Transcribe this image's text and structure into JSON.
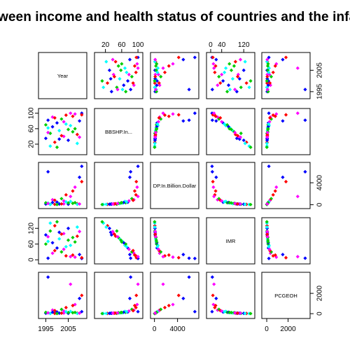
{
  "chart_data": {
    "type": "scatter",
    "title": "ween income and health status of countries and the infa",
    "variables": [
      "Year",
      "BBSHP.In...",
      "DP.In.Billion.Dollar",
      "IMR",
      "PCGEOH"
    ],
    "ranges": {
      "Year": [
        1993,
        2012
      ],
      "BBSHP": [
        0,
        105
      ],
      "GDP": [
        -200,
        7200
      ],
      "IMR": [
        -5,
        150
      ],
      "PCGEOH": [
        -200,
        3800
      ]
    },
    "ticks": {
      "top": {
        "col1": {
          "var": "BBSHP",
          "values": [
            20,
            60,
            100
          ],
          "labels": [
            "20",
            "60",
            "100"
          ]
        },
        "col3": {
          "var": "IMR",
          "values": [
            0,
            40,
            120
          ],
          "labels": [
            "0",
            "40",
            "120"
          ]
        }
      },
      "bottom": {
        "col0": {
          "var": "Year",
          "values": [
            1995,
            2005
          ],
          "labels": [
            "1995",
            "2005"
          ]
        },
        "col2": {
          "var": "GDP",
          "values": [
            0,
            4000
          ],
          "labels": [
            "0",
            "4000"
          ]
        },
        "col4": {
          "var": "PCGEOH",
          "values": [
            0,
            2000
          ],
          "labels": [
            "0",
            "2000"
          ]
        }
      },
      "left": {
        "row1": {
          "var": "BBSHP",
          "values": [
            20,
            60,
            100
          ],
          "labels": [
            "20",
            "60",
            "100"
          ]
        },
        "row3": {
          "var": "IMR",
          "values": [
            0,
            60,
            120
          ],
          "labels": [
            "0",
            "60",
            "120"
          ]
        }
      },
      "right": {
        "row0": {
          "var": "Year",
          "values": [
            1995,
            2005
          ],
          "labels": [
            "1995",
            "2005"
          ]
        },
        "row2": {
          "var": "GDP",
          "values": [
            0,
            4000
          ],
          "labels": [
            "0",
            "4000"
          ]
        },
        "row4": {
          "var": "PCGEOH",
          "values": [
            0,
            2000
          ],
          "labels": [
            "0",
            "2000"
          ]
        }
      }
    },
    "palette": [
      "#0000FF",
      "#00FFFF",
      "#00CD00",
      "#FF00FF",
      "#FF0000"
    ],
    "points": [
      {
        "Year": 1995,
        "BBSHP": 35,
        "GDP": 120,
        "IMR": 95,
        "PCGEOH": 40,
        "c": 0
      },
      {
        "Year": 1996,
        "BBSHP": 62,
        "GDP": 300,
        "IMR": 70,
        "PCGEOH": 90,
        "c": 1
      },
      {
        "Year": 1997,
        "BBSHP": 48,
        "GDP": 80,
        "IMR": 110,
        "PCGEOH": 30,
        "c": 2
      },
      {
        "Year": 1998,
        "BBSHP": 90,
        "GDP": 900,
        "IMR": 25,
        "PCGEOH": 350,
        "c": 3
      },
      {
        "Year": 1999,
        "BBSHP": 25,
        "GDP": 60,
        "IMR": 130,
        "PCGEOH": 25,
        "c": 4
      },
      {
        "Year": 2000,
        "BBSHP": 75,
        "GDP": 450,
        "IMR": 45,
        "PCGEOH": 160,
        "c": 0
      },
      {
        "Year": 2001,
        "BBSHP": 55,
        "GDP": 200,
        "IMR": 80,
        "PCGEOH": 70,
        "c": 1
      },
      {
        "Year": 2002,
        "BBSHP": 85,
        "GDP": 1100,
        "IMR": 30,
        "PCGEOH": 420,
        "c": 2
      },
      {
        "Year": 2003,
        "BBSHP": 40,
        "GDP": 150,
        "IMR": 100,
        "PCGEOH": 55,
        "c": 3
      },
      {
        "Year": 2004,
        "BBSHP": 95,
        "GDP": 1800,
        "IMR": 15,
        "PCGEOH": 600,
        "c": 4
      },
      {
        "Year": 2005,
        "BBSHP": 30,
        "GDP": 90,
        "IMR": 120,
        "PCGEOH": 35,
        "c": 0
      },
      {
        "Year": 2006,
        "BBSHP": 68,
        "GDP": 600,
        "IMR": 55,
        "PCGEOH": 220,
        "c": 1
      },
      {
        "Year": 2007,
        "BBSHP": 52,
        "GDP": 250,
        "IMR": 85,
        "PCGEOH": 95,
        "c": 2
      },
      {
        "Year": 2008,
        "BBSHP": 98,
        "GDP": 3200,
        "IMR": 10,
        "PCGEOH": 900,
        "c": 3
      },
      {
        "Year": 2009,
        "BBSHP": 45,
        "GDP": 180,
        "IMR": 90,
        "PCGEOH": 60,
        "c": 4
      },
      {
        "Year": 2010,
        "BBSHP": 80,
        "GDP": 5000,
        "IMR": 20,
        "PCGEOH": 1500,
        "c": 0
      },
      {
        "Year": 2011,
        "BBSHP": 100,
        "GDP": 7000,
        "IMR": 5,
        "PCGEOH": 200,
        "c": 0
      },
      {
        "Year": 1995,
        "BBSHP": 70,
        "GDP": 350,
        "IMR": 60,
        "PCGEOH": 130,
        "c": 2
      },
      {
        "Year": 1997,
        "BBSHP": 15,
        "GDP": 40,
        "IMR": 140,
        "PCGEOH": 15,
        "c": 1
      },
      {
        "Year": 1999,
        "BBSHP": 88,
        "GDP": 800,
        "IMR": 35,
        "PCGEOH": 300,
        "c": 4
      },
      {
        "Year": 2001,
        "BBSHP": 33,
        "GDP": 110,
        "IMR": 105,
        "PCGEOH": 45,
        "c": 0
      },
      {
        "Year": 2003,
        "BBSHP": 78,
        "GDP": 700,
        "IMR": 40,
        "PCGEOH": 260,
        "c": 3
      },
      {
        "Year": 2005,
        "BBSHP": 58,
        "GDP": 320,
        "IMR": 75,
        "PCGEOH": 110,
        "c": 2
      },
      {
        "Year": 2007,
        "BBSHP": 92,
        "GDP": 2500,
        "IMR": 18,
        "PCGEOH": 800,
        "c": 4
      },
      {
        "Year": 2009,
        "BBSHP": 22,
        "GDP": 70,
        "IMR": 125,
        "PCGEOH": 20,
        "c": 1
      },
      {
        "Year": 2011,
        "BBSHP": 96,
        "GDP": 4200,
        "IMR": 8,
        "PCGEOH": 1800,
        "c": 4
      },
      {
        "Year": 1996,
        "BBSHP": 50,
        "GDP": 220,
        "IMR": 88,
        "PCGEOH": 75,
        "c": 3
      },
      {
        "Year": 1998,
        "BBSHP": 65,
        "GDP": 400,
        "IMR": 65,
        "PCGEOH": 140,
        "c": 0
      },
      {
        "Year": 2000,
        "BBSHP": 12,
        "GDP": 30,
        "IMR": 145,
        "PCGEOH": 10,
        "c": 2
      },
      {
        "Year": 2002,
        "BBSHP": 42,
        "GDP": 140,
        "IMR": 98,
        "PCGEOH": 50,
        "c": 4
      },
      {
        "Year": 2004,
        "BBSHP": 72,
        "GDP": 520,
        "IMR": 50,
        "PCGEOH": 190,
        "c": 1
      },
      {
        "Year": 2006,
        "BBSHP": 100,
        "GDP": 1500,
        "IMR": 12,
        "PCGEOH": 2900,
        "c": 3
      },
      {
        "Year": 2008,
        "BBSHP": 60,
        "GDP": 380,
        "IMR": 68,
        "PCGEOH": 125,
        "c": 2
      },
      {
        "Year": 2010,
        "BBSHP": 38,
        "GDP": 130,
        "IMR": 108,
        "PCGEOH": 48,
        "c": 3
      },
      {
        "Year": 1996,
        "BBSHP": 82,
        "GDP": 6000,
        "IMR": 6,
        "PCGEOH": 3600,
        "c": 0
      }
    ]
  }
}
